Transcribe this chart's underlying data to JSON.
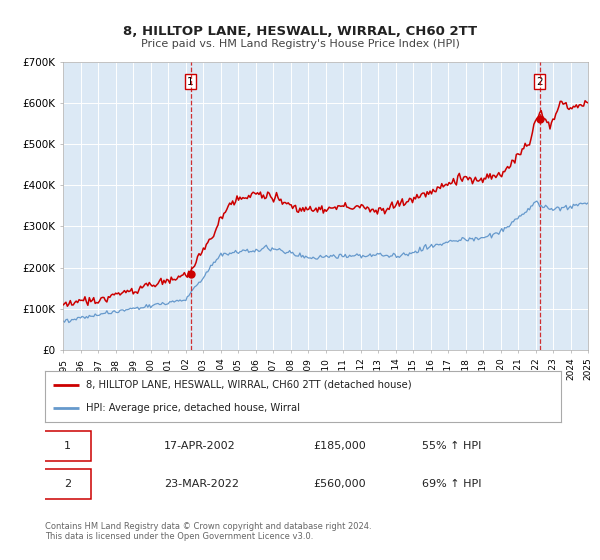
{
  "title": "8, HILLTOP LANE, HESWALL, WIRRAL, CH60 2TT",
  "subtitle": "Price paid vs. HM Land Registry's House Price Index (HPI)",
  "bg_color": "#dce9f5",
  "fig_bg_color": "#ffffff",
  "red_line_color": "#cc0000",
  "blue_line_color": "#6699cc",
  "sale1_date": 2002.29,
  "sale1_price": 185000,
  "sale2_date": 2022.23,
  "sale2_price": 560000,
  "xmin": 1995,
  "xmax": 2025,
  "ymin": 0,
  "ymax": 700000,
  "yticks": [
    0,
    100000,
    200000,
    300000,
    400000,
    500000,
    600000,
    700000
  ],
  "ytick_labels": [
    "£0",
    "£100K",
    "£200K",
    "£300K",
    "£400K",
    "£500K",
    "£600K",
    "£700K"
  ],
  "legend_line1": "8, HILLTOP LANE, HESWALL, WIRRAL, CH60 2TT (detached house)",
  "legend_line2": "HPI: Average price, detached house, Wirral",
  "table_row1_num": "1",
  "table_row1_date": "17-APR-2002",
  "table_row1_price": "£185,000",
  "table_row1_hpi": "55% ↑ HPI",
  "table_row2_num": "2",
  "table_row2_date": "23-MAR-2022",
  "table_row2_price": "£560,000",
  "table_row2_hpi": "69% ↑ HPI",
  "footer": "Contains HM Land Registry data © Crown copyright and database right 2024.\nThis data is licensed under the Open Government Licence v3.0."
}
